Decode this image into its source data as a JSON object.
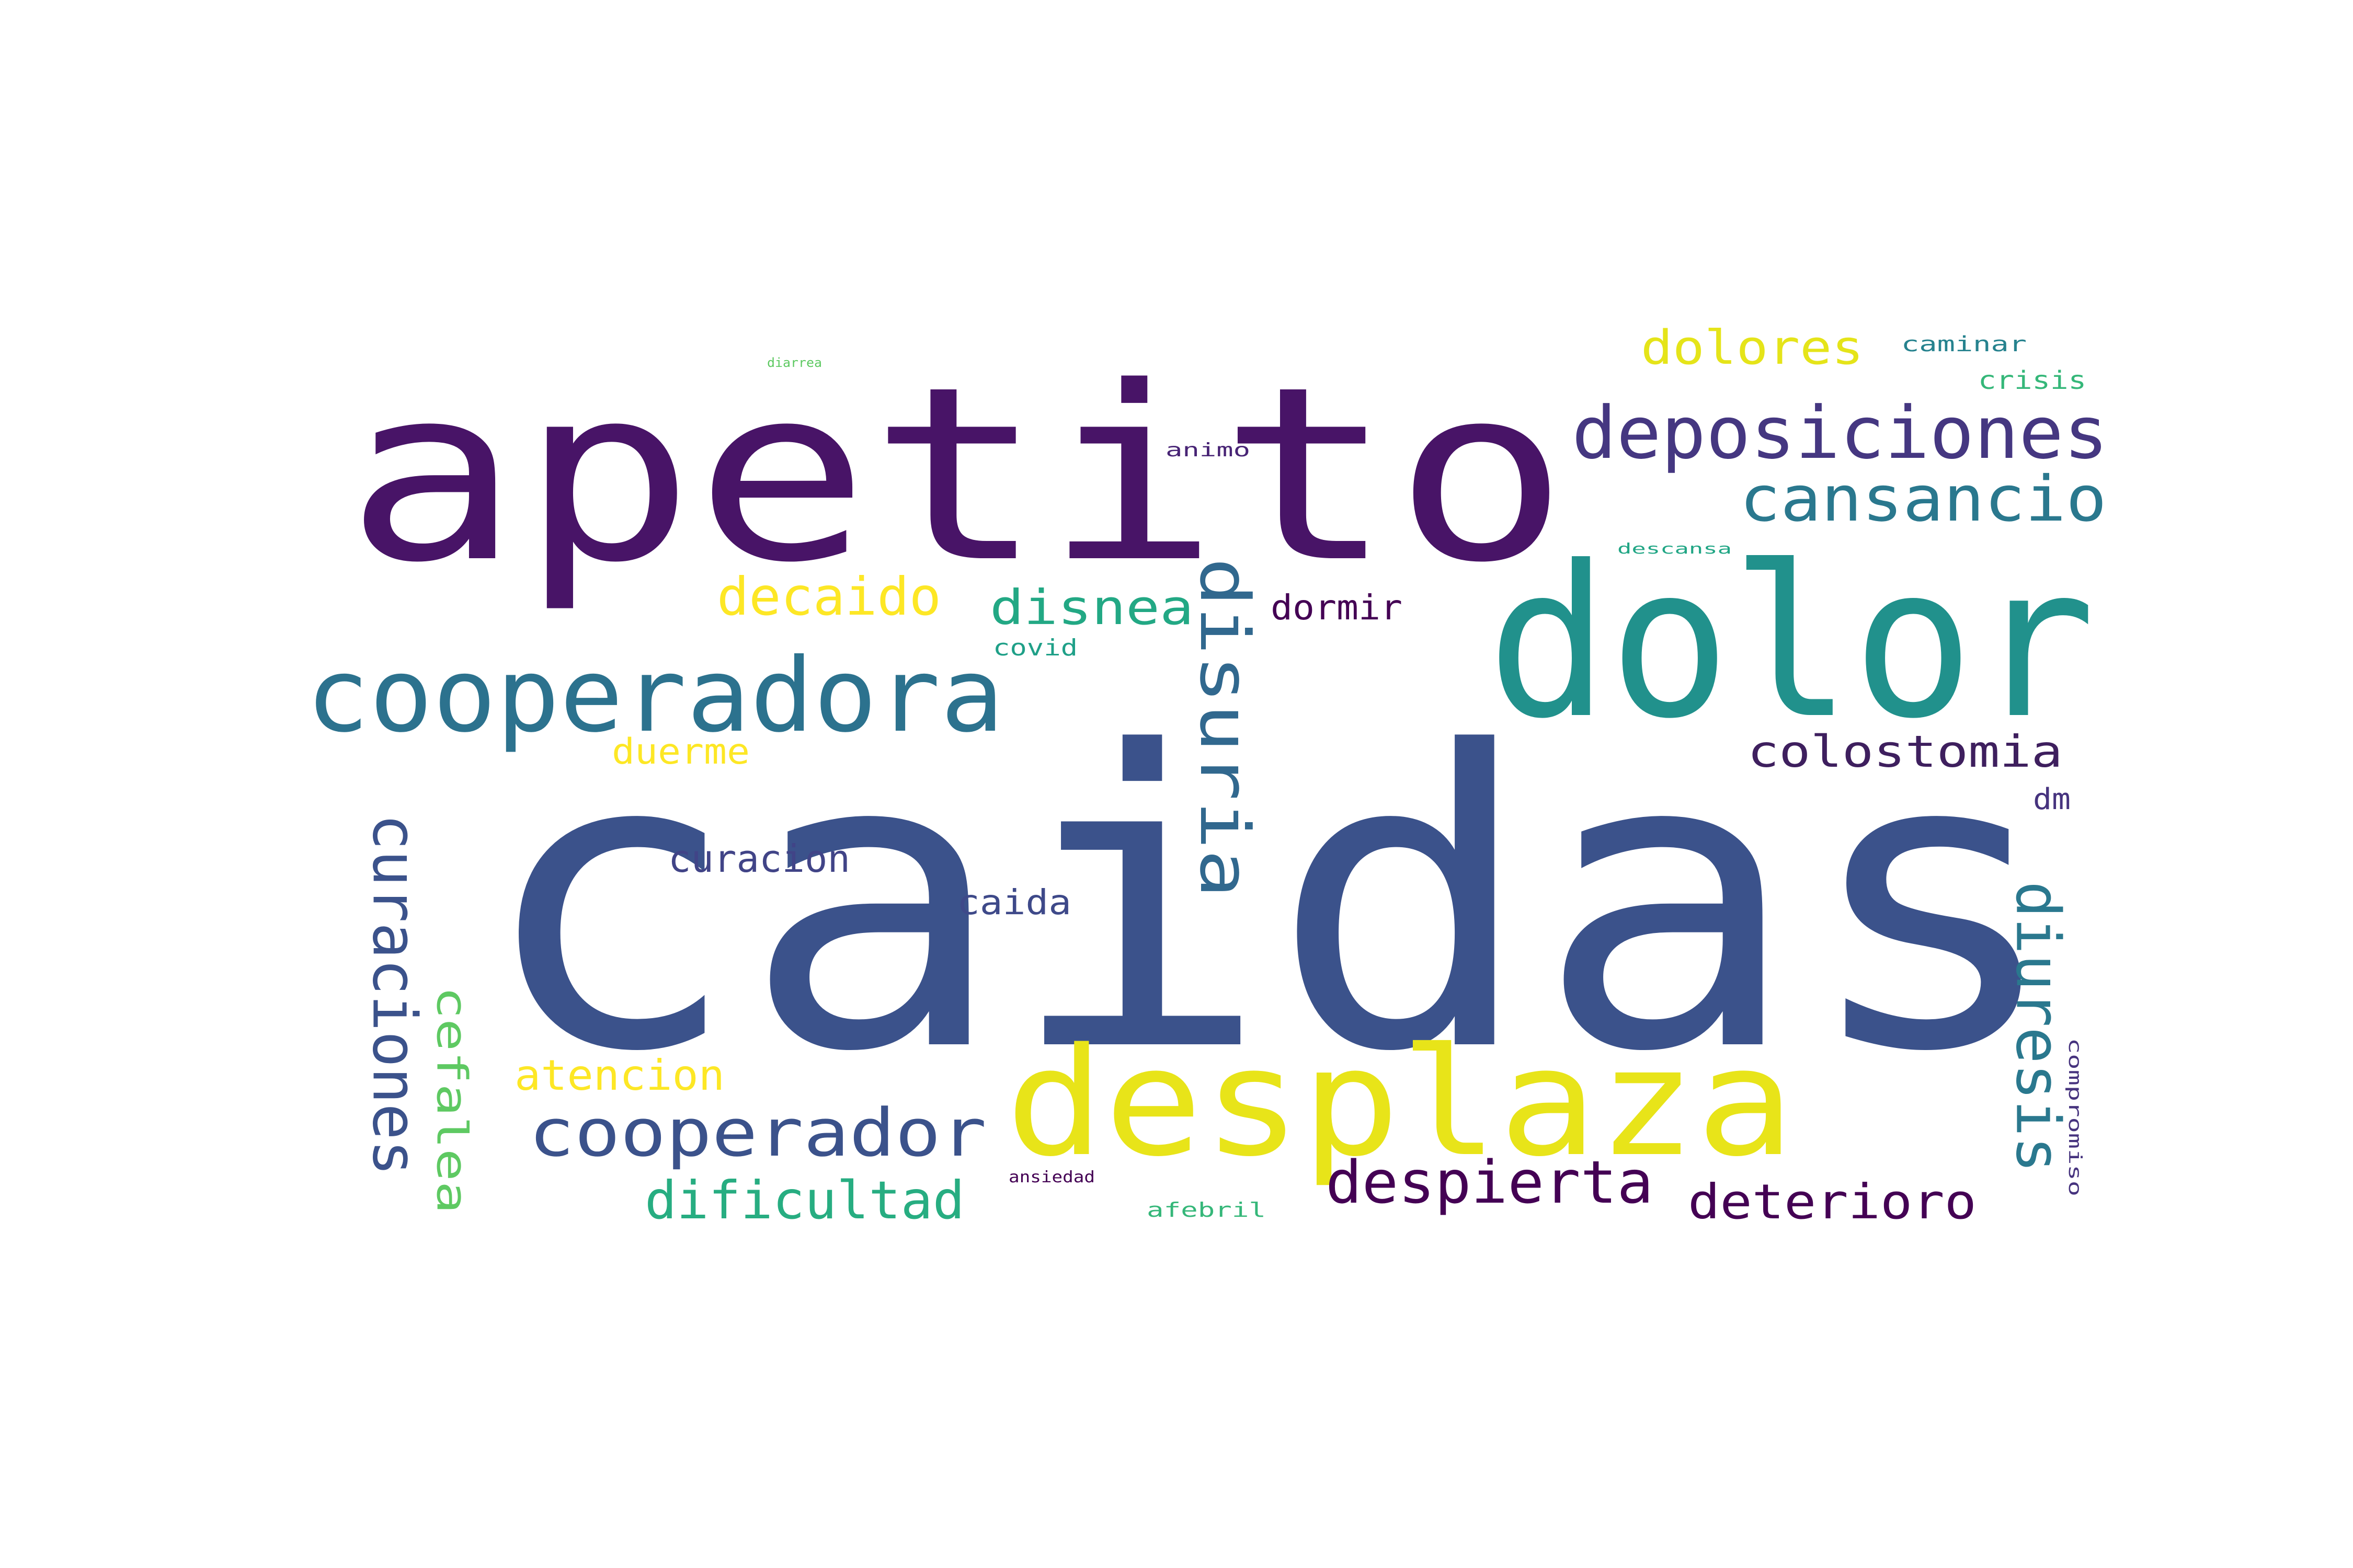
{
  "words": [
    {
      "id": "apetito",
      "text": "apetito",
      "color": "#481467",
      "vertical": false
    },
    {
      "id": "dolor",
      "text": "dolor",
      "color": "#21918c",
      "vertical": false
    },
    {
      "id": "caidas",
      "text": "caidas",
      "color": "#3b528b",
      "vertical": false
    },
    {
      "id": "desplaza",
      "text": "desplaza",
      "color": "#e8e419",
      "vertical": false
    },
    {
      "id": "cooperadora",
      "text": "cooperadora",
      "color": "#2c728e",
      "vertical": false
    },
    {
      "id": "deposiciones",
      "text": "deposiciones",
      "color": "#453781",
      "vertical": false
    },
    {
      "id": "cansancio",
      "text": "cansancio",
      "color": "#2a788e",
      "vertical": false
    },
    {
      "id": "dolores",
      "text": "dolores",
      "color": "#e5e419",
      "vertical": false
    },
    {
      "id": "caminar",
      "text": "caminar",
      "color": "#26828e",
      "vertical": false
    },
    {
      "id": "crisis",
      "text": "crisis",
      "color": "#35b779",
      "vertical": false
    },
    {
      "id": "diarrea",
      "text": "diarrea",
      "color": "#5ec962",
      "vertical": false
    },
    {
      "id": "animo",
      "text": "animo",
      "color": "#482475",
      "vertical": false
    },
    {
      "id": "descansa",
      "text": "descansa",
      "color": "#21a685",
      "vertical": false
    },
    {
      "id": "decaido",
      "text": "decaido",
      "color": "#fde725",
      "vertical": false
    },
    {
      "id": "disnea",
      "text": "disnea",
      "color": "#22a884",
      "vertical": false
    },
    {
      "id": "disuria",
      "text": "disuria",
      "color": "#31688e",
      "vertical": true
    },
    {
      "id": "dormir",
      "text": "dormir",
      "color": "#440154",
      "vertical": false
    },
    {
      "id": "covid",
      "text": "covid",
      "color": "#1fa088",
      "vertical": false
    },
    {
      "id": "colostomia",
      "text": "colostomia",
      "color": "#3e1f5e",
      "vertical": false
    },
    {
      "id": "duerme",
      "text": "duerme",
      "color": "#fde725",
      "vertical": false
    },
    {
      "id": "dm",
      "text": "dm",
      "color": "#46337e",
      "vertical": false
    },
    {
      "id": "curaciones",
      "text": "curaciones",
      "color": "#3b528b",
      "vertical": true
    },
    {
      "id": "curacion",
      "text": "curacion",
      "color": "#414487",
      "vertical": false
    },
    {
      "id": "caida",
      "text": "caida",
      "color": "#3e4989",
      "vertical": false
    },
    {
      "id": "diuresis",
      "text": "diuresis",
      "color": "#2a788e",
      "vertical": true
    },
    {
      "id": "cefalea",
      "text": "cefalea",
      "color": "#5ec962",
      "vertical": true
    },
    {
      "id": "atencion",
      "text": "atencion",
      "color": "#fde725",
      "vertical": false
    },
    {
      "id": "cooperador",
      "text": "cooperador",
      "color": "#3b528b",
      "vertical": false
    },
    {
      "id": "compromiso",
      "text": "compromiso",
      "color": "#46337e",
      "vertical": true
    },
    {
      "id": "despierta",
      "text": "despierta",
      "color": "#440154",
      "vertical": false
    },
    {
      "id": "deterioro",
      "text": "deterioro",
      "color": "#440154",
      "vertical": false
    },
    {
      "id": "dificultad",
      "text": "dificultad",
      "color": "#27ad81",
      "vertical": false
    },
    {
      "id": "ansiedad",
      "text": "ansiedad",
      "color": "#440154",
      "vertical": false
    },
    {
      "id": "afebril",
      "text": "afebril",
      "color": "#35b779",
      "vertical": false
    }
  ]
}
